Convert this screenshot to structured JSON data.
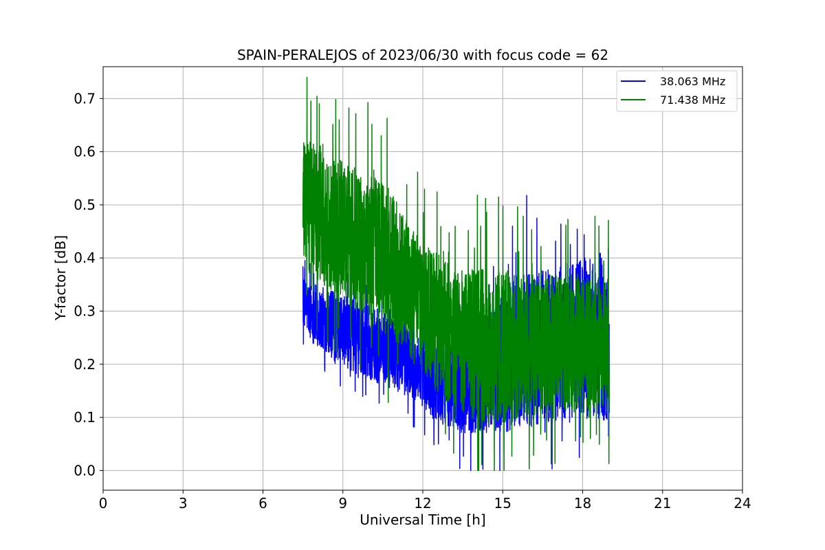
{
  "chart_data": {
    "type": "line",
    "title": "SPAIN-PERALEJOS of 2023/06/30 with focus code = 62",
    "xlabel": "Universal Time [h]",
    "ylabel": "Y-factor [dB]",
    "xlim": [
      0,
      24
    ],
    "ylim": [
      -0.037,
      0.76
    ],
    "xticks": [
      0,
      3,
      6,
      9,
      12,
      15,
      18,
      21,
      24
    ],
    "yticks": [
      0.0,
      0.1,
      0.2,
      0.3,
      0.4,
      0.5,
      0.6,
      0.7
    ],
    "xtick_labels": [
      "0",
      "3",
      "6",
      "9",
      "12",
      "15",
      "18",
      "21",
      "24"
    ],
    "ytick_labels": [
      "0.0",
      "0.1",
      "0.2",
      "0.3",
      "0.4",
      "0.5",
      "0.6",
      "0.7"
    ],
    "grid": true,
    "legend_position": "top-right",
    "series": [
      {
        "name": "38.063 MHz",
        "color": "#0000ff",
        "x_range": [
          7.5,
          19.0
        ],
        "envelope_x": [
          7.5,
          8.0,
          8.5,
          9.0,
          9.5,
          10.0,
          10.5,
          11.0,
          11.5,
          12.0,
          12.5,
          13.0,
          13.5,
          14.0,
          14.5,
          15.0,
          15.5,
          16.0,
          16.5,
          17.0,
          17.5,
          18.0,
          18.5,
          19.0
        ],
        "envelope_low": [
          0.27,
          0.23,
          0.22,
          0.2,
          0.18,
          0.17,
          0.16,
          0.15,
          0.14,
          0.12,
          0.09,
          0.08,
          0.07,
          0.07,
          0.07,
          0.07,
          0.08,
          0.08,
          0.09,
          0.09,
          0.09,
          0.09,
          0.09,
          0.09
        ],
        "envelope_high": [
          0.36,
          0.35,
          0.34,
          0.33,
          0.32,
          0.31,
          0.3,
          0.29,
          0.27,
          0.25,
          0.24,
          0.24,
          0.25,
          0.27,
          0.3,
          0.34,
          0.36,
          0.38,
          0.38,
          0.38,
          0.39,
          0.4,
          0.41,
          0.42
        ]
      },
      {
        "name": "71.438 MHz",
        "color": "#008000",
        "x_range": [
          7.5,
          19.0
        ],
        "envelope_x": [
          7.5,
          8.0,
          8.5,
          9.0,
          9.5,
          10.0,
          10.5,
          11.0,
          11.5,
          12.0,
          12.5,
          13.0,
          13.5,
          14.0,
          14.5,
          15.0,
          15.5,
          16.0,
          16.5,
          17.0,
          17.5,
          18.0,
          18.5,
          19.0
        ],
        "envelope_low": [
          0.38,
          0.36,
          0.34,
          0.32,
          0.3,
          0.28,
          0.26,
          0.24,
          0.21,
          0.18,
          0.15,
          0.12,
          0.1,
          0.09,
          0.09,
          0.09,
          0.09,
          0.1,
          0.11,
          0.11,
          0.11,
          0.11,
          0.11,
          0.11
        ],
        "envelope_high": [
          0.62,
          0.62,
          0.6,
          0.58,
          0.57,
          0.56,
          0.54,
          0.51,
          0.46,
          0.43,
          0.41,
          0.39,
          0.38,
          0.38,
          0.38,
          0.38,
          0.37,
          0.37,
          0.37,
          0.37,
          0.37,
          0.37,
          0.36,
          0.36
        ]
      }
    ]
  }
}
